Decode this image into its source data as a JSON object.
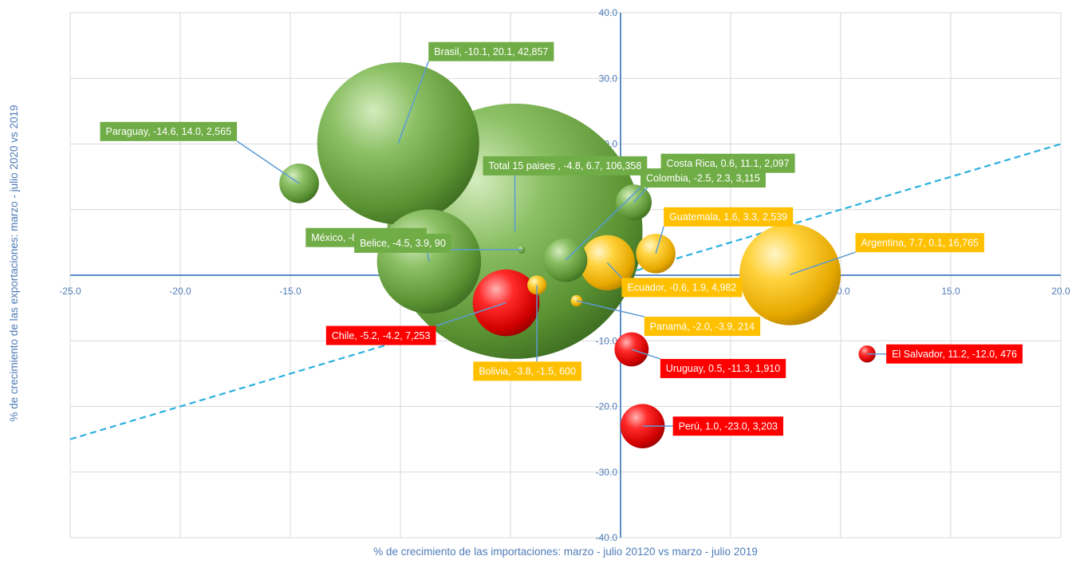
{
  "chart_data": {
    "type": "bubble",
    "title": "",
    "xlabel": "% de crecimiento de las importaciones:  marzo - julio 20120  vs marzo - julio 2019",
    "ylabel": "% de crecimiento de las exportaciones:  marzo - julio 2020 vs 2019",
    "xlim": [
      -25,
      20
    ],
    "ylim": [
      -40,
      40
    ],
    "x_ticks": [
      "-25.0",
      "-20.0",
      "-15.0",
      "-10.0",
      "-5.0",
      "0.0",
      "5.0",
      "10.0",
      "15.0",
      "20.0"
    ],
    "y_ticks": [
      "40.0",
      "30.0",
      "20.0",
      "10.0",
      "0.0",
      "-10.0",
      "-20.0",
      "-30.0",
      "-40.0"
    ],
    "grid": true,
    "reference_line": {
      "style": "dashed",
      "color": "#2bb0e0",
      "from": [
        -25,
        -25
      ],
      "to": [
        20,
        20
      ]
    },
    "colors": {
      "green": "#70ad47",
      "yellow": "#ffc000",
      "red": "#ff0000",
      "axis": "#5b8ec9",
      "grid": "#d9d9d9"
    },
    "points": [
      {
        "name": "Total 15 paises",
        "x": -4.8,
        "y": 6.7,
        "value": 106358,
        "color": "green",
        "label": "Total 15 paises , -4.8, 6.7,  106,358"
      },
      {
        "name": "Brasil",
        "x": -10.1,
        "y": 20.1,
        "value": 42857,
        "color": "green",
        "label": "Brasil, -10.1, 20.1,  42,857"
      },
      {
        "name": "México",
        "x": -8.7,
        "y": 2.1,
        "value": 17692,
        "color": "green",
        "label": "México, -8.7, 2.1,  17,692"
      },
      {
        "name": "Argentina",
        "x": 7.7,
        "y": 0.1,
        "value": 16765,
        "color": "yellow",
        "label": "Argentina, 7.7, 0.1,  16,765"
      },
      {
        "name": "Chile",
        "x": -5.2,
        "y": -4.2,
        "value": 7253,
        "color": "red",
        "label": "Chile, -5.2, -4.2,  7,253"
      },
      {
        "name": "Ecuador",
        "x": -0.6,
        "y": 1.9,
        "value": 4982,
        "color": "yellow",
        "label": "Ecuador, -0.6, 1.9,  4,982"
      },
      {
        "name": "Perú",
        "x": 1.0,
        "y": -23.0,
        "value": 3203,
        "color": "red",
        "label": "Perú, 1.0, -23.0,  3,203"
      },
      {
        "name": "Colombia",
        "x": -2.5,
        "y": 2.3,
        "value": 3115,
        "color": "green",
        "label": "Colombia, -2.5, 2.3,  3,115"
      },
      {
        "name": "Paraguay",
        "x": -14.6,
        "y": 14.0,
        "value": 2565,
        "color": "green",
        "label": "Paraguay, -14.6, 14.0,  2,565"
      },
      {
        "name": "Guatemala",
        "x": 1.6,
        "y": 3.3,
        "value": 2539,
        "color": "yellow",
        "label": "Guatemala, 1.6, 3.3,  2,539"
      },
      {
        "name": "Costa Rica",
        "x": 0.6,
        "y": 11.1,
        "value": 2097,
        "color": "green",
        "label": "Costa Rica, 0.6, 11.1,  2,097"
      },
      {
        "name": "Uruguay",
        "x": 0.5,
        "y": -11.3,
        "value": 1910,
        "color": "red",
        "label": "Uruguay, 0.5, -11.3,  1,910"
      },
      {
        "name": "Bolivia",
        "x": -3.8,
        "y": -1.5,
        "value": 600,
        "color": "yellow",
        "label": "Bolivia, -3.8, -1.5,  600"
      },
      {
        "name": "El Salvador",
        "x": 11.2,
        "y": -12.0,
        "value": 476,
        "color": "red",
        "label": "El Salvador, 11.2, -12.0,  476"
      },
      {
        "name": "Panamá",
        "x": -2.0,
        "y": -3.9,
        "value": 214,
        "color": "yellow",
        "label": "Panamá, -2.0, -3.9,  214"
      },
      {
        "name": "Belice",
        "x": -4.5,
        "y": 3.9,
        "value": 90,
        "color": "green",
        "label": "Belice, -4.5, 3.9,  90"
      }
    ]
  }
}
